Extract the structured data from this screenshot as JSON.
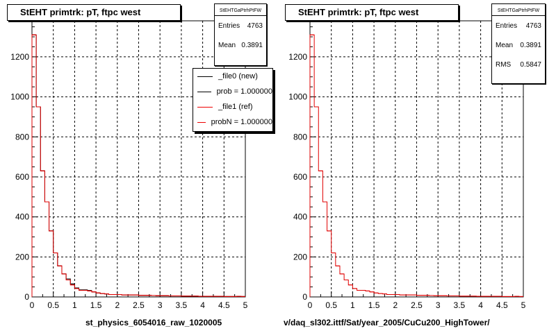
{
  "chart_data": [
    {
      "type": "histogram",
      "title": "StEHT primtrk: pT, ftpc west",
      "xlim": [
        0,
        5
      ],
      "ylim": [
        0,
        1380
      ],
      "x_ticks": [
        "0",
        "0.5",
        "1",
        "1.5",
        "2",
        "2.5",
        "3",
        "3.5",
        "4",
        "4.5",
        "5"
      ],
      "y_ticks": [
        "0",
        "200",
        "400",
        "600",
        "800",
        "1000",
        "1200"
      ],
      "grid": true,
      "bin_width": 0.1,
      "series": [
        {
          "name": "_file0 (new)",
          "color": "#000000",
          "values": [
            1310,
            950,
            630,
            475,
            330,
            220,
            155,
            115,
            90,
            65,
            45,
            35,
            35,
            32,
            25,
            20,
            17,
            15,
            12,
            12,
            12,
            10,
            10,
            10,
            10,
            8,
            8,
            8,
            7,
            6,
            6,
            6,
            5,
            5,
            5,
            4,
            4,
            4,
            4,
            3,
            3,
            3,
            3,
            3,
            3,
            2,
            2,
            2,
            3,
            2
          ]
        },
        {
          "name": "_file1 (ref)",
          "color": "#e00000",
          "values": [
            1310,
            950,
            630,
            475,
            330,
            220,
            155,
            115,
            85,
            60,
            42,
            33,
            33,
            30,
            25,
            20,
            17,
            15,
            12,
            12,
            12,
            10,
            10,
            10,
            10,
            8,
            8,
            8,
            7,
            6,
            6,
            6,
            5,
            5,
            5,
            4,
            4,
            4,
            4,
            3,
            3,
            3,
            3,
            3,
            3,
            2,
            2,
            2,
            3,
            2
          ]
        }
      ],
      "stats": {
        "box_title": "StEHTGaPtrhPtFW",
        "Entries": "4763",
        "Mean": "0.3891"
      },
      "legend": [
        "_file0 (new)",
        "prob = 1.000000",
        "_file1 (ref)",
        "probN = 1.000000"
      ],
      "file_label": "st_physics_6054016_raw_1020005"
    },
    {
      "type": "histogram",
      "title": "StEHT primtrk: pT, ftpc west",
      "xlim": [
        0,
        5
      ],
      "ylim": [
        0,
        1380
      ],
      "x_ticks": [
        "0",
        "0.5",
        "1",
        "1.5",
        "2",
        "2.5",
        "3",
        "3.5",
        "4",
        "4.5",
        "5"
      ],
      "y_ticks": [
        "0",
        "200",
        "400",
        "600",
        "800",
        "1000",
        "1200"
      ],
      "grid": true,
      "bin_width": 0.1,
      "series": [
        {
          "name": "",
          "color": "#e00000",
          "values": [
            1310,
            950,
            630,
            475,
            330,
            220,
            155,
            115,
            85,
            60,
            42,
            33,
            33,
            30,
            25,
            20,
            17,
            15,
            12,
            12,
            12,
            10,
            10,
            10,
            10,
            8,
            8,
            8,
            7,
            6,
            6,
            6,
            5,
            5,
            5,
            4,
            4,
            4,
            4,
            3,
            3,
            3,
            3,
            3,
            3,
            2,
            2,
            2,
            3,
            2
          ]
        }
      ],
      "stats": {
        "box_title": "StEHTGaPtrhPtFW",
        "Entries": "4763",
        "Mean": "0.3891",
        "RMS": "0.5847"
      },
      "file_label": "v/daq_sl302.ittf/Sat/year_2005/CuCu200_HighTower/"
    }
  ]
}
